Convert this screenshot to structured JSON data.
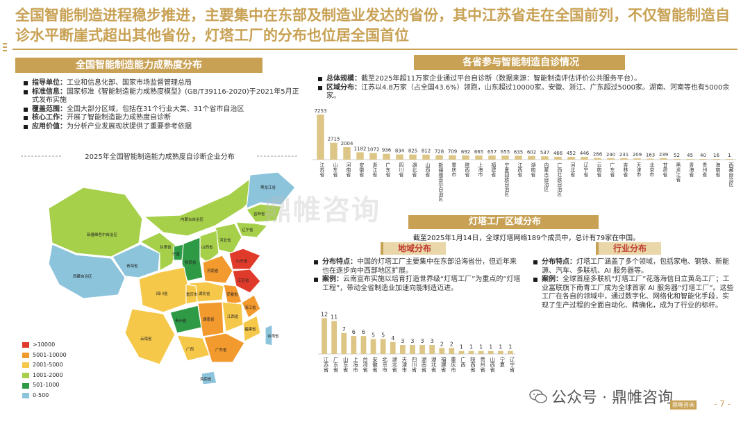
{
  "headline": "全国智能制造进程稳步推进，主要集中在东部及制造业发达的省份，其中江苏省走在全国前列，不仅智能制造自诊水平断崖式超出其他省份，灯塔工厂的分布也位居全国首位",
  "left_panel": {
    "banner": "全国智能制造能力成熟度分布",
    "items": [
      {
        "label": "指导单位：",
        "text": "工业和信息化部、国家市场监督管理总局"
      },
      {
        "label": "标准信息：",
        "text": "国家标准《智能制造能力成熟度模型》(GB/T39116-2020)于2021年5月正式发布实施"
      },
      {
        "label": "覆盖范围：",
        "text": "全国大部分区域，包括在31个行业大类、31个省市自治区"
      },
      {
        "label": "核心工作：",
        "text": "开展了智能制造能力成熟度自诊断"
      },
      {
        "label": "应用价值：",
        "text": "为分析产业发展现状提供了重要参考依据"
      }
    ],
    "map_title": "2025年全国智能制造能力成熟度自诊断企业分布",
    "legend": [
      {
        "label": ">10000",
        "color": "#e03a2a"
      },
      {
        "label": "5001-10000",
        "color": "#f29a2e"
      },
      {
        "label": "2001-5000",
        "color": "#f6c84a"
      },
      {
        "label": "1001-2000",
        "color": "#a6cf4a"
      },
      {
        "label": "501-1000",
        "color": "#2f9a45"
      },
      {
        "label": "0-500",
        "color": "#8cc4dc"
      }
    ],
    "map_labels": [
      "新疆维吾尔自治区",
      "西藏自治区",
      "青海省",
      "甘肃省",
      "内蒙古自治区",
      "四川省",
      "云南省",
      "广西",
      "广东省",
      "湖南省",
      "江西省",
      "福建省",
      "浙江省",
      "江苏省",
      "山东省",
      "河南省",
      "湖北省",
      "贵州省",
      "陕西省",
      "山西省",
      "河北省",
      "辽宁省",
      "吉林省",
      "黑龙江省",
      "安徽省",
      "重庆市",
      "宁夏",
      "海南省",
      "台湾省"
    ]
  },
  "right_top": {
    "banner": "各省参与智能制造自诊情况",
    "items": [
      {
        "label": "总体规模：",
        "text": "截至2025年超11万家企业通过平台自诊断（数据来源：智能制造评估评价公共服务平台）。"
      },
      {
        "label": "区域分布：",
        "text": "江苏以4.8万家（占全国43.6%）领跑，山东超过10000家。安徽、浙江、广东超过5000家。湖南、河南等也有5000余家。"
      }
    ]
  },
  "lighthouse": {
    "banner": "灯塔工厂区域分布",
    "intro": "截至2025年1月14日，全球灯塔网络189个成员中，总计有79家在中国。",
    "region": {
      "banner": "地域分布",
      "items": [
        {
          "label": "分布特点：",
          "text": "中国的灯塔工厂主要集中在东部沿海省份，但近年来也在逐步向中西部地区扩展。"
        },
        {
          "label": "案例：",
          "text": "云南宣布实施以培育打造世界级“灯塔工厂”为重点的“灯塔工程”，带动全省制造业加速向能制造迈进。"
        }
      ]
    },
    "industry": {
      "banner": "行业分布",
      "items": [
        {
          "label": "分布特点：",
          "text": "灯塔工厂涵盖了多个领域，包括家电、钢铁、新能源、汽车、多联机、AI 服务器等。"
        },
        {
          "label": "案例：",
          "text": "全球首座多联机“灯塔工厂”花落海信日立黄岛工厂；工业富联旗下南青工厂成为全球首家 AI 服务器“灯塔工厂”。这些工厂在各自的领域中，通过数字化、网络化和智能化手段，实现了生产过程的全面自动化、精确化，成为了行业的标杆。"
        }
      ]
    }
  },
  "watermark": "鼎帷咨询",
  "footer": {
    "wechat": "公众号 · 鼎帷咨询",
    "logo": "鼎帷咨询",
    "page": "- 7 -"
  },
  "chart_data": [
    {
      "type": "bar",
      "title": "",
      "categories": [
        "江苏省",
        "山东省",
        "河南省",
        "安徽省",
        "浙江省",
        "广东省",
        "四川省",
        "湖北省",
        "山西省",
        "新疆维吾尔自治区",
        "重庆市",
        "陕西省",
        "上海市",
        "福建省",
        "宁夏回族自治区",
        "江西省",
        "湖南省",
        "内蒙古自治区",
        "广西壮族自治区",
        "河北省",
        "辽宁省",
        "云南省",
        "广东省",
        "吉林省",
        "天津市",
        "北京市",
        "甘肃省",
        "黑龙江省",
        "青海省",
        "贵州省",
        "海南省",
        "西藏自治区"
      ],
      "values": [
        7253,
        2715,
        2004,
        1182,
        1072,
        936,
        834,
        825,
        812,
        728,
        709,
        692,
        665,
        657,
        655,
        635,
        602,
        537,
        466,
        452,
        446,
        266,
        240,
        231,
        209,
        163,
        239,
        52,
        45,
        40,
        16,
        1
      ],
      "ylim": [
        0,
        7600
      ],
      "color": "#dcc585"
    },
    {
      "type": "bar",
      "title": "",
      "categories": [
        "江苏省",
        "广东省",
        "山东省",
        "上海市",
        "台湾省",
        "安徽省",
        "北京市",
        "湖北省",
        "天津市",
        "四川省",
        "湖南省",
        "湖北省",
        "福建省",
        "重庆市",
        "广西",
        "陕西省",
        "贵州省",
        "山西省",
        "宁夏",
        "辽宁省"
      ],
      "values": [
        12,
        11,
        7,
        6,
        6,
        5,
        5,
        4,
        3,
        3,
        3,
        3,
        2,
        2,
        1,
        1,
        1,
        1,
        1,
        1
      ],
      "ylim": [
        0,
        13
      ],
      "color": "#dcc585"
    }
  ]
}
